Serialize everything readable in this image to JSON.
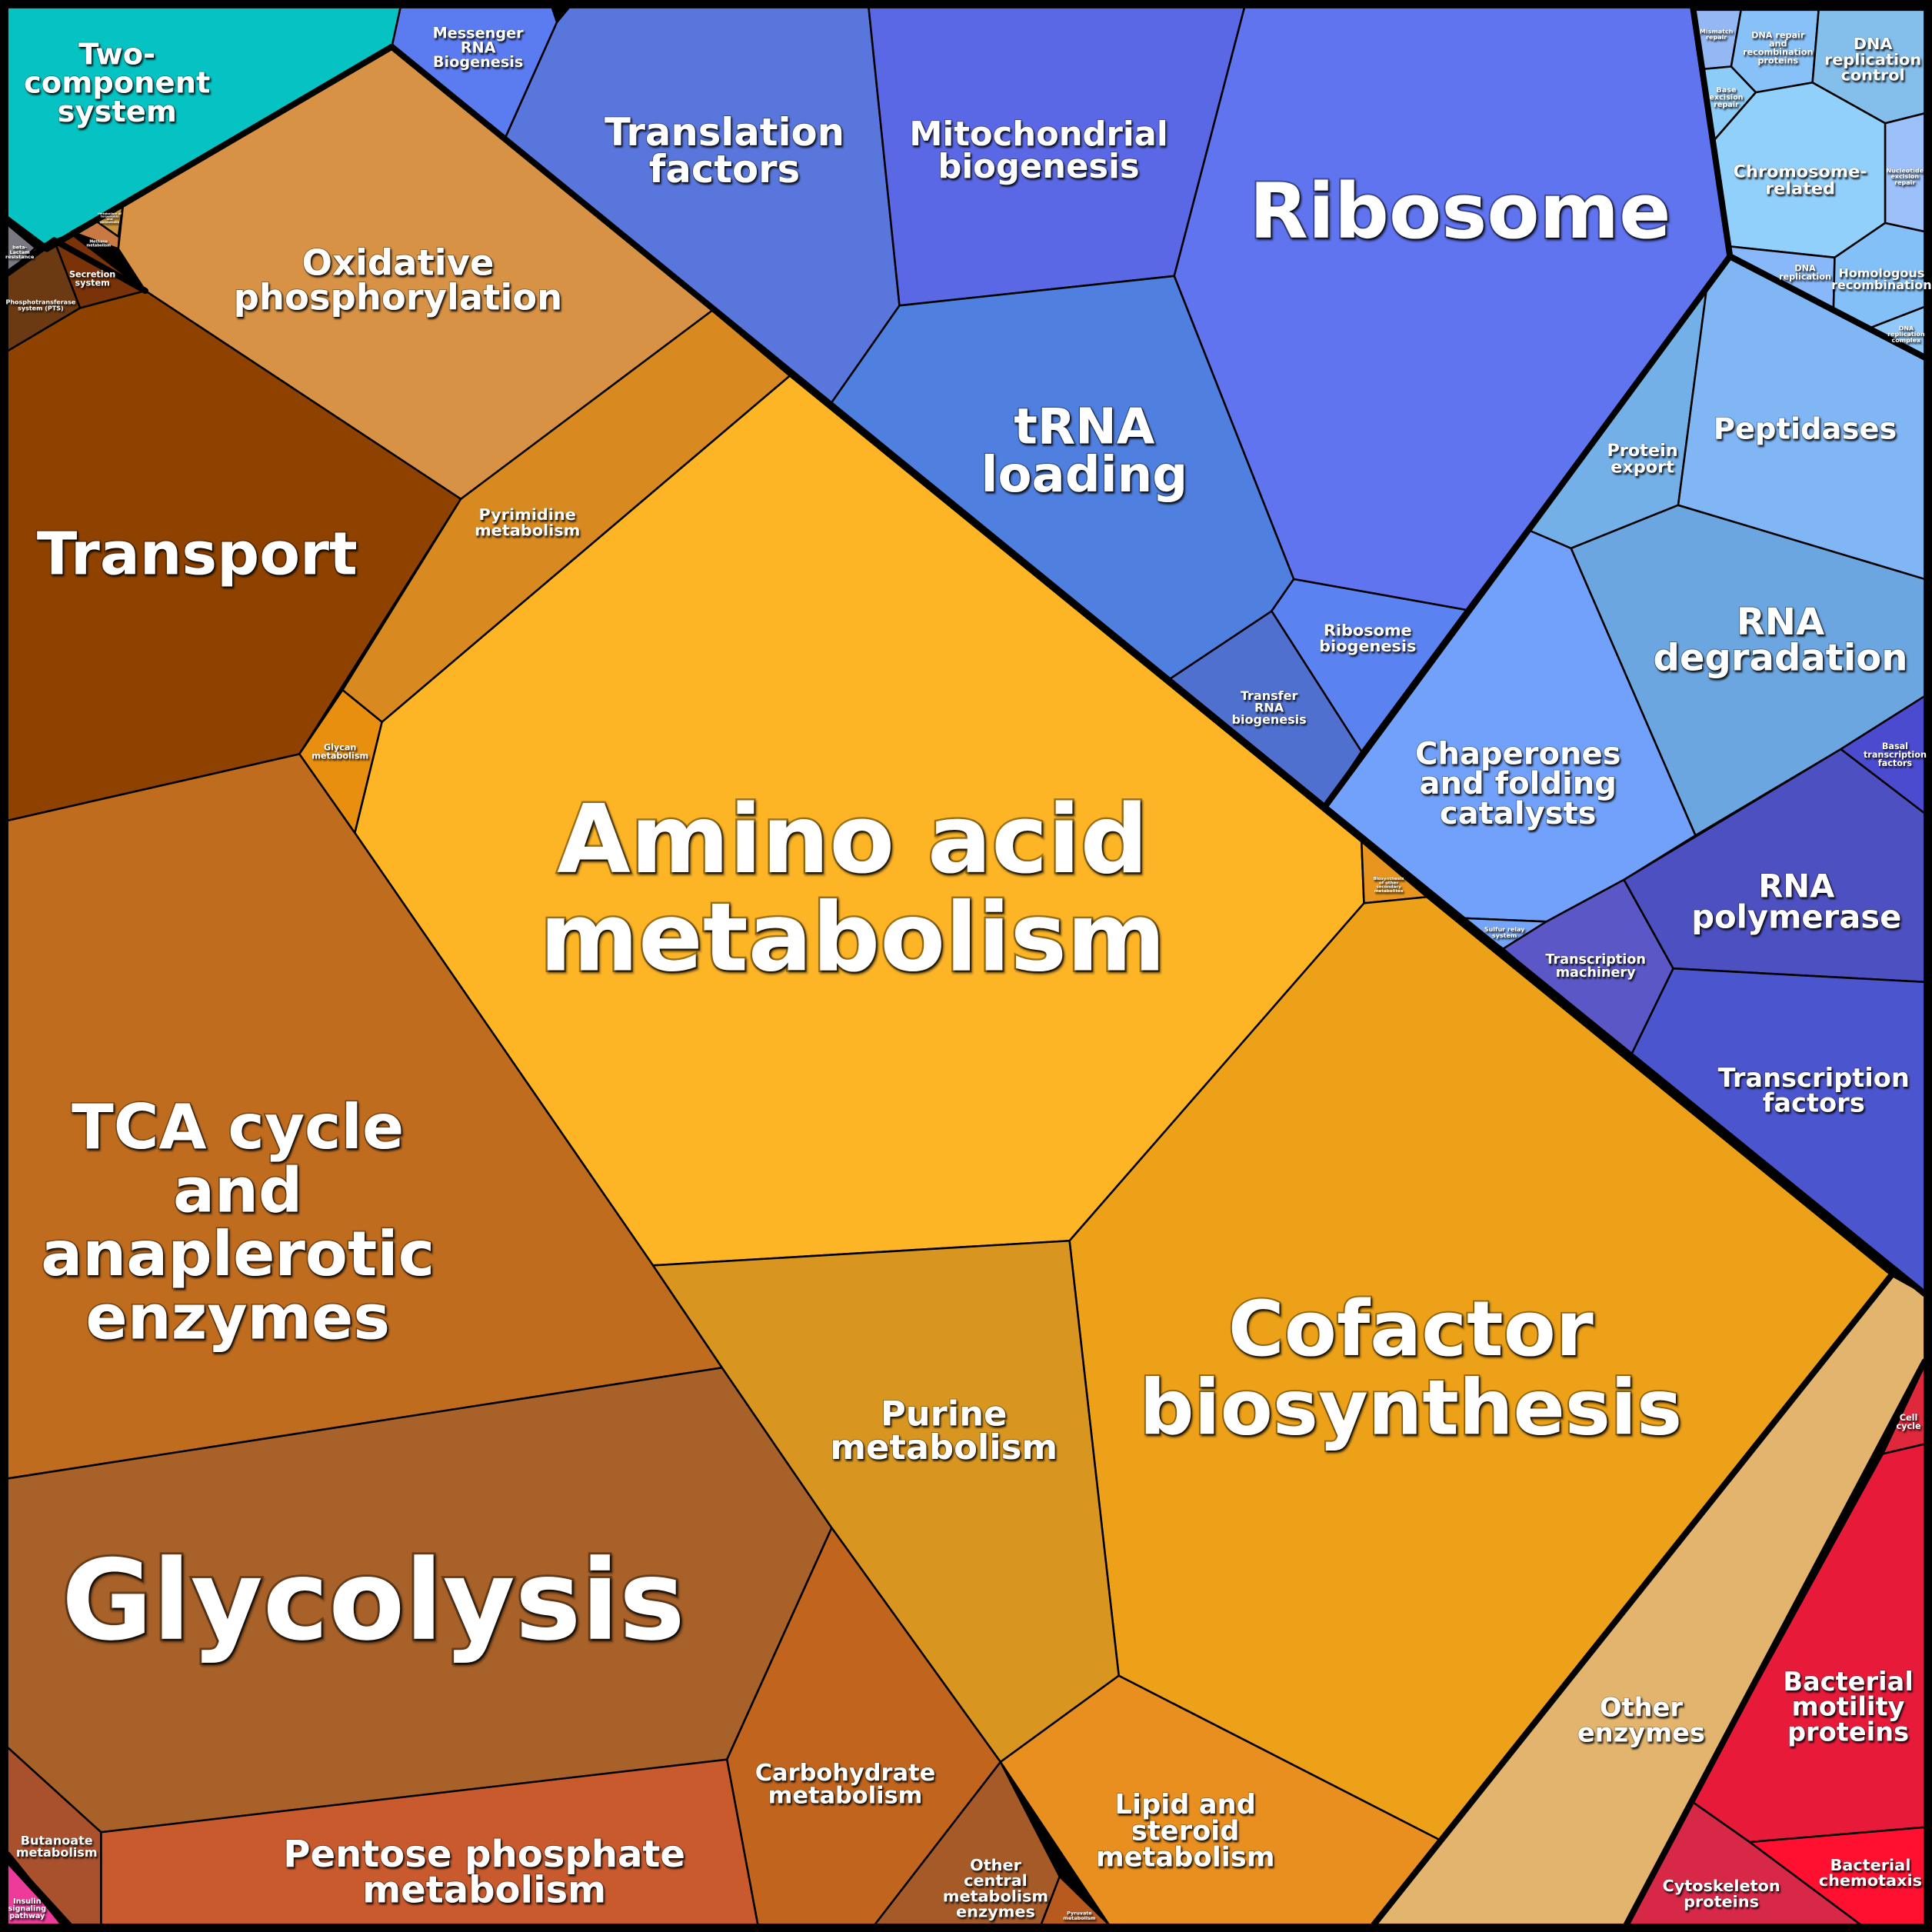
{
  "cells": [
    {
      "label": [
        "Two-",
        "component",
        "system"
      ],
      "color": "#05C3C3"
    },
    {
      "label": [
        "beta-",
        "Lactam",
        "resistance"
      ],
      "color": "#7A7880"
    },
    {
      "label": [
        "Phosphotransferase",
        "system (PTS)"
      ],
      "color": "#6B3A12"
    },
    {
      "label": [
        "Secretion",
        "system"
      ],
      "color": "#7A3308"
    },
    {
      "label": [
        "Methane",
        "metabolism"
      ],
      "color": "#C97A42"
    },
    {
      "label": [
        "Metabolism of",
        "terpenoids",
        "and",
        "polyketides"
      ],
      "color": "#C9953A"
    },
    {
      "label": [
        "Oxidative",
        "phosphorylation"
      ],
      "color": "#D89245"
    },
    {
      "label": [
        "Transport"
      ],
      "color": "#8F4200"
    },
    {
      "label": [
        "Pyrimidine",
        "metabolism"
      ],
      "color": "#D88A20"
    },
    {
      "label": [
        "Glycan",
        "metabolism"
      ],
      "color": "#E88F10"
    },
    {
      "label": [
        "Amino acid",
        "metabolism"
      ],
      "color": "#FDB526"
    },
    {
      "label": [
        "Biosynthesis",
        "of other",
        "secondary",
        "metabolites"
      ],
      "color": "#E89520"
    },
    {
      "label": [
        "Cofactor",
        "biosynthesis"
      ],
      "color": "#EDA118"
    },
    {
      "label": [
        "TCA cycle",
        "and",
        "anaplerotic",
        "enzymes"
      ],
      "color": "#BF6C1F"
    },
    {
      "label": [
        "Glycolysis"
      ],
      "color": "#A86128"
    },
    {
      "label": [
        "Purine",
        "metabolism"
      ],
      "color": "#D89620"
    },
    {
      "label": [
        "Carbohydrate",
        "metabolism"
      ],
      "color": "#C0641E"
    },
    {
      "label": [
        "Other",
        "central",
        "metabolism",
        "enzymes"
      ],
      "color": "#A55A28"
    },
    {
      "label": [
        "Pyruvate",
        "metabolism"
      ],
      "color": "#B85A1E"
    },
    {
      "label": [
        "Lipid and",
        "steroid",
        "metabolism"
      ],
      "color": "#E98F20"
    },
    {
      "label": [
        "Pentose phosphate",
        "metabolism"
      ],
      "color": "#C95A2E"
    },
    {
      "label": [
        "Butanoate",
        "metabolism"
      ],
      "color": "#A9502C"
    },
    {
      "label": [
        "Insulin",
        "signaling",
        "pathway"
      ],
      "color": "#EE3A99"
    },
    {
      "label": [
        "Other",
        "enzymes"
      ],
      "color": "#E3B46D"
    },
    {
      "label": [
        "Cell",
        "cycle"
      ],
      "color": "#E0283C"
    },
    {
      "label": [
        "Bacterial",
        "motility",
        "proteins"
      ],
      "color": "#E81A3A"
    },
    {
      "label": [
        "Bacterial",
        "chemotaxis"
      ],
      "color": "#FF1030"
    },
    {
      "label": [
        "Cytoskeleton",
        "proteins"
      ],
      "color": "#D82848"
    },
    {
      "label": [
        "Messenger",
        "RNA",
        "Biogenesis"
      ],
      "color": "#5B7BF0"
    },
    {
      "label": [
        "Translation",
        "factors"
      ],
      "color": "#5976DD"
    },
    {
      "label": [
        "Mitochondrial",
        "biogenesis"
      ],
      "color": "#5A68E6"
    },
    {
      "label": [
        "Ribosome"
      ],
      "color": "#6074F0"
    },
    {
      "label": [
        "tRNA",
        "loading"
      ],
      "color": "#5080DF"
    },
    {
      "label": [
        "Ribosome",
        "biogenesis"
      ],
      "color": "#5A82F0"
    },
    {
      "label": [
        "Transfer",
        "RNA",
        "biogenesis"
      ],
      "color": "#5070D0"
    },
    {
      "label": [
        "Protein",
        "export"
      ],
      "color": "#74B0E8"
    },
    {
      "label": [
        "Peptidases"
      ],
      "color": "#80B6F4"
    },
    {
      "label": [
        "RNA",
        "degradation"
      ],
      "color": "#6CA6E0"
    },
    {
      "label": [
        "Chaperones",
        "and folding",
        "catalysts"
      ],
      "color": "#71A1FA"
    },
    {
      "label": [
        "Sulfur relay",
        "system"
      ],
      "color": "#74A4F8"
    },
    {
      "label": [
        "Transcription",
        "machinery"
      ],
      "color": "#5B57C6"
    },
    {
      "label": [
        "RNA",
        "polymerase"
      ],
      "color": "#4D50C0"
    },
    {
      "label": [
        "Basal",
        "transcription",
        "factors"
      ],
      "color": "#4B4BD0"
    },
    {
      "label": [
        "Transcription",
        "factors"
      ],
      "color": "#4A55CE"
    },
    {
      "label": [
        "Mismatch",
        "repair"
      ],
      "color": "#94B8F4"
    },
    {
      "label": [
        "DNA repair",
        "and",
        "recombination",
        "proteins"
      ],
      "color": "#88C0F8"
    },
    {
      "label": [
        "DNA",
        "replication",
        "control"
      ],
      "color": "#84BEEA"
    },
    {
      "label": [
        "Base",
        "excision",
        "repair"
      ],
      "color": "#8CCCF8"
    },
    {
      "label": [
        "Chromosome-",
        "related"
      ],
      "color": "#92D0FC"
    },
    {
      "label": [
        "Nucleotide",
        "excision",
        "repair"
      ],
      "color": "#9CC0FA"
    },
    {
      "label": [
        "DNA",
        "replication"
      ],
      "color": "#88B8FA"
    },
    {
      "label": [
        "Homologous",
        "recombination"
      ],
      "color": "#84C0F8"
    },
    {
      "label": [
        "DNA",
        "replication",
        "complex"
      ],
      "color": "#90C8FA"
    }
  ]
}
